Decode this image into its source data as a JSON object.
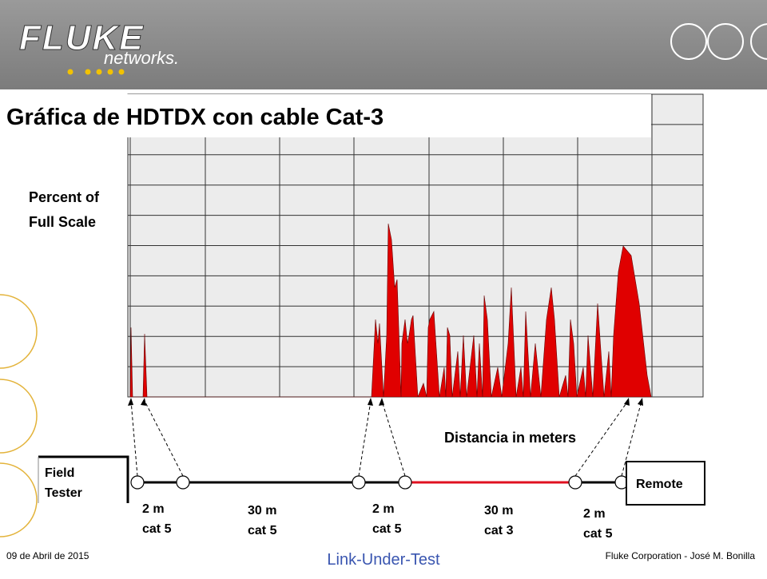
{
  "header": {
    "logo": "FLUKE",
    "logo_sub": "networks."
  },
  "title": "Gráfica de HDTDX con cable Cat-3",
  "y_axis_label": [
    "Percent of",
    "Full Scale"
  ],
  "x_axis_label": "Distancia in meters",
  "field_tester": [
    "Field",
    "Tester"
  ],
  "remote": "Remote",
  "segments": [
    [
      "2 m",
      "cat 5"
    ],
    [
      "30 m",
      "cat 5"
    ],
    [
      "2 m",
      "cat 5"
    ],
    [
      "30 m",
      "cat 3"
    ],
    [
      "2 m",
      "cat 5"
    ]
  ],
  "footer": {
    "date": "09 de Abril de 2015",
    "center": "Link-Under-Test",
    "right": "Fluke Corporation - José M. Bonilla"
  }
}
